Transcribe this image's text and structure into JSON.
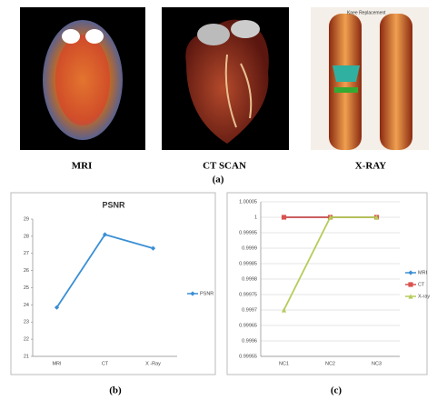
{
  "images": [
    {
      "caption": "MRI"
    },
    {
      "caption": "CT SCAN"
    },
    {
      "caption": "X-RAY",
      "overlay_text": "Knee Replacement"
    }
  ],
  "panel_labels": [
    "(a)",
    "(b)",
    "(c)"
  ],
  "chart_data": [
    {
      "type": "line",
      "title": "PSNR",
      "categories": [
        "MRI",
        "CT",
        "X -Ray"
      ],
      "series": [
        {
          "name": "PSNR",
          "color": "#3a8fd4",
          "marker": "diamond",
          "values": [
            23.85,
            28.1,
            27.3
          ]
        }
      ],
      "ylim": [
        21,
        29
      ],
      "yticks": [
        21,
        22,
        23,
        24,
        25,
        26,
        27,
        28,
        29
      ],
      "grid": false,
      "legend": "right"
    },
    {
      "type": "line",
      "categories": [
        "NC1",
        "NC2",
        "NC3"
      ],
      "series": [
        {
          "name": "MRI",
          "color": "#3a8fd4",
          "marker": "diamond",
          "values": [
            1,
            1,
            1
          ]
        },
        {
          "name": "CT",
          "color": "#d9534f",
          "marker": "square",
          "values": [
            1,
            1,
            1
          ]
        },
        {
          "name": "X-ray",
          "color": "#b5cc5a",
          "marker": "triangle",
          "values": [
            0.9997,
            1,
            1
          ]
        }
      ],
      "ylim": [
        0.99955,
        1.00005
      ],
      "yticks": [
        0.99955,
        0.9996,
        0.99965,
        0.9997,
        0.99975,
        0.9998,
        0.99985,
        0.9999,
        0.99995,
        1,
        1.00005
      ],
      "grid": true,
      "legend": "right"
    }
  ]
}
